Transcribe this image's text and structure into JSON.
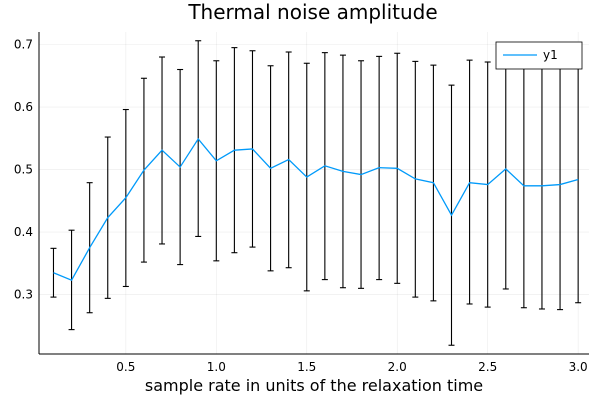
{
  "chart_data": {
    "type": "line",
    "title": "Thermal noise amplitude",
    "xlabel": "sample rate in units of the relaxation time",
    "ylabel": "",
    "xlim": [
      0.02,
      3.06
    ],
    "ylim": [
      0.205,
      0.72
    ],
    "x_ticks": [
      0.5,
      1.0,
      1.5,
      2.0,
      2.5,
      3.0
    ],
    "x_tick_labels": [
      "0.5",
      "1.0",
      "1.5",
      "2.0",
      "2.5",
      "3.0"
    ],
    "y_ticks": [
      0.3,
      0.4,
      0.5,
      0.6,
      0.7
    ],
    "y_tick_labels": [
      "0.3",
      "0.4",
      "0.5",
      "0.6",
      "0.7"
    ],
    "grid": true,
    "legend_position": "top-right",
    "colors": {
      "series": "#009AFA",
      "errorbars": "#000000"
    },
    "series": [
      {
        "name": "y1",
        "x": [
          0.1,
          0.2,
          0.3,
          0.4,
          0.5,
          0.6,
          0.7,
          0.8,
          0.9,
          1.0,
          1.1,
          1.2,
          1.3,
          1.4,
          1.5,
          1.6,
          1.7,
          1.8,
          1.9,
          2.0,
          2.1,
          2.2,
          2.3,
          2.4,
          2.5,
          2.6,
          2.7,
          2.8,
          2.9,
          3.0
        ],
        "y": [
          0.335,
          0.323,
          0.375,
          0.423,
          0.455,
          0.499,
          0.531,
          0.504,
          0.549,
          0.514,
          0.531,
          0.533,
          0.502,
          0.516,
          0.488,
          0.506,
          0.497,
          0.492,
          0.503,
          0.502,
          0.485,
          0.479,
          0.427,
          0.479,
          0.476,
          0.501,
          0.474,
          0.474,
          0.476,
          0.484
        ],
        "error_low": [
          0.296,
          0.244,
          0.271,
          0.294,
          0.313,
          0.352,
          0.381,
          0.348,
          0.393,
          0.354,
          0.367,
          0.376,
          0.338,
          0.343,
          0.306,
          0.324,
          0.311,
          0.31,
          0.324,
          0.318,
          0.296,
          0.29,
          0.219,
          0.285,
          0.28,
          0.309,
          0.279,
          0.277,
          0.276,
          0.287
        ],
        "error_high": [
          0.374,
          0.403,
          0.479,
          0.552,
          0.596,
          0.646,
          0.68,
          0.66,
          0.706,
          0.674,
          0.695,
          0.69,
          0.666,
          0.688,
          0.67,
          0.687,
          0.683,
          0.674,
          0.681,
          0.686,
          0.673,
          0.667,
          0.635,
          0.675,
          0.672,
          0.692,
          0.669,
          0.671,
          0.676,
          0.681
        ]
      }
    ]
  }
}
